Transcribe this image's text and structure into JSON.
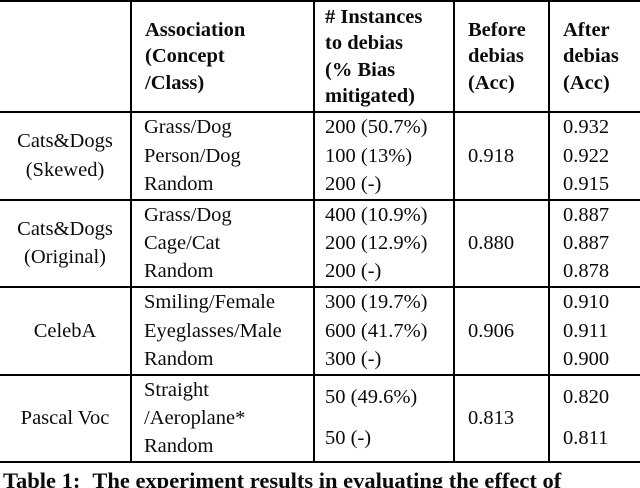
{
  "table": {
    "header": {
      "dataset": "",
      "association": "Association\n(Concept\n/Class)",
      "instances": "# Instances\nto debias\n(% Bias\nmitigated)",
      "before": "Before\ndebias\n(Acc)",
      "after": "After\ndebias\n(Acc)"
    },
    "groups": [
      {
        "dataset": "Cats&Dogs\n(Skewed)",
        "associations": "Grass/Dog\nPerson/Dog\nRandom",
        "instances": "200 (50.7%)\n100 (13%)\n200 (-)",
        "before": "0.918",
        "after": "0.932\n0.922\n0.915"
      },
      {
        "dataset": "Cats&Dogs\n(Original)",
        "associations": "Grass/Dog\nCage/Cat\nRandom",
        "instances": "400 (10.9%)\n200 (12.9%)\n200 (-)",
        "before": "0.880",
        "after": "0.887\n0.887\n0.878"
      },
      {
        "dataset": "CelebA",
        "associations": "Smiling/Female\nEyeglasses/Male\nRandom",
        "instances": "300 (19.7%)\n600 (41.7%)\n300 (-)",
        "before": "0.906",
        "after": "0.910\n0.911\n0.900"
      },
      {
        "dataset": "Pascal Voc",
        "associations": "Straight\n/Aeroplane*\nRandom",
        "instances": "50 (49.6%)\n50 (-)",
        "before": "0.813",
        "after": "0.820\n0.811"
      }
    ]
  },
  "caption": {
    "label": "Table 1:",
    "text": "The experiment results in evaluating the effect of"
  },
  "colors": {
    "text": "#0b0b0b",
    "border": "#000000",
    "background": "#ffffff"
  }
}
